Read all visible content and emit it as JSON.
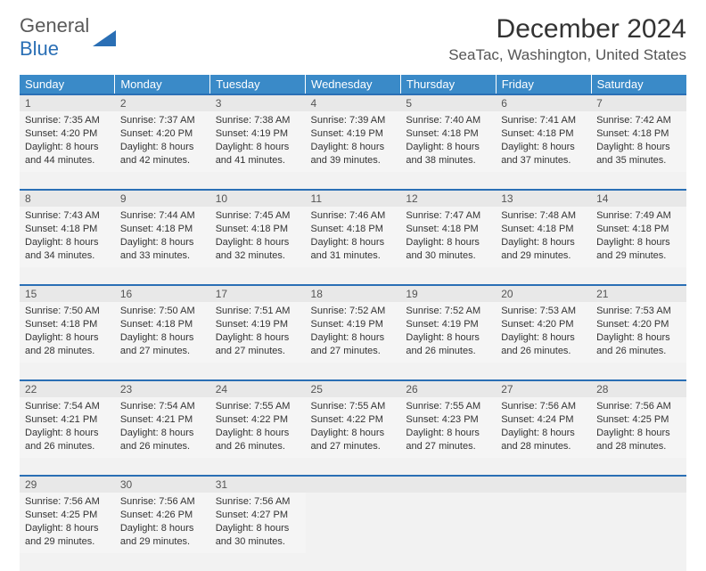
{
  "brand": {
    "line1": "General",
    "line2": "Blue",
    "shape_color": "#2a6fb5"
  },
  "header": {
    "month_title": "December 2024",
    "location": "SeaTac, Washington, United States"
  },
  "colors": {
    "header_bg": "#3a8ac8",
    "rule": "#2a6fb5",
    "cell_bg": "#f5f5f5",
    "num_bg": "#e8e8e8"
  },
  "day_labels": [
    "Sunday",
    "Monday",
    "Tuesday",
    "Wednesday",
    "Thursday",
    "Friday",
    "Saturday"
  ],
  "weeks": [
    [
      {
        "n": "1",
        "sr": "7:35 AM",
        "ss": "4:20 PM",
        "dl": "8 hours and 44 minutes."
      },
      {
        "n": "2",
        "sr": "7:37 AM",
        "ss": "4:20 PM",
        "dl": "8 hours and 42 minutes."
      },
      {
        "n": "3",
        "sr": "7:38 AM",
        "ss": "4:19 PM",
        "dl": "8 hours and 41 minutes."
      },
      {
        "n": "4",
        "sr": "7:39 AM",
        "ss": "4:19 PM",
        "dl": "8 hours and 39 minutes."
      },
      {
        "n": "5",
        "sr": "7:40 AM",
        "ss": "4:18 PM",
        "dl": "8 hours and 38 minutes."
      },
      {
        "n": "6",
        "sr": "7:41 AM",
        "ss": "4:18 PM",
        "dl": "8 hours and 37 minutes."
      },
      {
        "n": "7",
        "sr": "7:42 AM",
        "ss": "4:18 PM",
        "dl": "8 hours and 35 minutes."
      }
    ],
    [
      {
        "n": "8",
        "sr": "7:43 AM",
        "ss": "4:18 PM",
        "dl": "8 hours and 34 minutes."
      },
      {
        "n": "9",
        "sr": "7:44 AM",
        "ss": "4:18 PM",
        "dl": "8 hours and 33 minutes."
      },
      {
        "n": "10",
        "sr": "7:45 AM",
        "ss": "4:18 PM",
        "dl": "8 hours and 32 minutes."
      },
      {
        "n": "11",
        "sr": "7:46 AM",
        "ss": "4:18 PM",
        "dl": "8 hours and 31 minutes."
      },
      {
        "n": "12",
        "sr": "7:47 AM",
        "ss": "4:18 PM",
        "dl": "8 hours and 30 minutes."
      },
      {
        "n": "13",
        "sr": "7:48 AM",
        "ss": "4:18 PM",
        "dl": "8 hours and 29 minutes."
      },
      {
        "n": "14",
        "sr": "7:49 AM",
        "ss": "4:18 PM",
        "dl": "8 hours and 29 minutes."
      }
    ],
    [
      {
        "n": "15",
        "sr": "7:50 AM",
        "ss": "4:18 PM",
        "dl": "8 hours and 28 minutes."
      },
      {
        "n": "16",
        "sr": "7:50 AM",
        "ss": "4:18 PM",
        "dl": "8 hours and 27 minutes."
      },
      {
        "n": "17",
        "sr": "7:51 AM",
        "ss": "4:19 PM",
        "dl": "8 hours and 27 minutes."
      },
      {
        "n": "18",
        "sr": "7:52 AM",
        "ss": "4:19 PM",
        "dl": "8 hours and 27 minutes."
      },
      {
        "n": "19",
        "sr": "7:52 AM",
        "ss": "4:19 PM",
        "dl": "8 hours and 26 minutes."
      },
      {
        "n": "20",
        "sr": "7:53 AM",
        "ss": "4:20 PM",
        "dl": "8 hours and 26 minutes."
      },
      {
        "n": "21",
        "sr": "7:53 AM",
        "ss": "4:20 PM",
        "dl": "8 hours and 26 minutes."
      }
    ],
    [
      {
        "n": "22",
        "sr": "7:54 AM",
        "ss": "4:21 PM",
        "dl": "8 hours and 26 minutes."
      },
      {
        "n": "23",
        "sr": "7:54 AM",
        "ss": "4:21 PM",
        "dl": "8 hours and 26 minutes."
      },
      {
        "n": "24",
        "sr": "7:55 AM",
        "ss": "4:22 PM",
        "dl": "8 hours and 26 minutes."
      },
      {
        "n": "25",
        "sr": "7:55 AM",
        "ss": "4:22 PM",
        "dl": "8 hours and 27 minutes."
      },
      {
        "n": "26",
        "sr": "7:55 AM",
        "ss": "4:23 PM",
        "dl": "8 hours and 27 minutes."
      },
      {
        "n": "27",
        "sr": "7:56 AM",
        "ss": "4:24 PM",
        "dl": "8 hours and 28 minutes."
      },
      {
        "n": "28",
        "sr": "7:56 AM",
        "ss": "4:25 PM",
        "dl": "8 hours and 28 minutes."
      }
    ],
    [
      {
        "n": "29",
        "sr": "7:56 AM",
        "ss": "4:25 PM",
        "dl": "8 hours and 29 minutes."
      },
      {
        "n": "30",
        "sr": "7:56 AM",
        "ss": "4:26 PM",
        "dl": "8 hours and 29 minutes."
      },
      {
        "n": "31",
        "sr": "7:56 AM",
        "ss": "4:27 PM",
        "dl": "8 hours and 30 minutes."
      },
      null,
      null,
      null,
      null
    ]
  ],
  "labels": {
    "sunrise": "Sunrise:",
    "sunset": "Sunset:",
    "daylight": "Daylight:"
  }
}
